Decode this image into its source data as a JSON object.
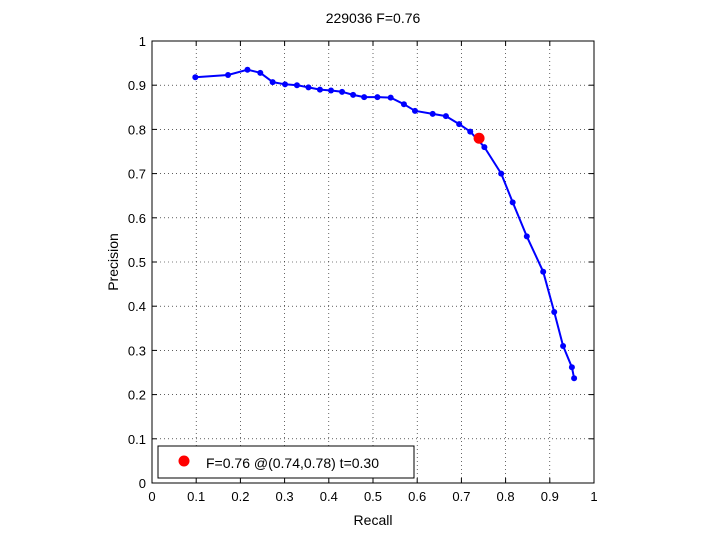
{
  "chart_data": {
    "type": "line",
    "title": "229036 F=0.76",
    "xlabel": "Recall",
    "ylabel": "Precision",
    "xlim": [
      0,
      1
    ],
    "ylim": [
      0,
      1
    ],
    "xticks": [
      0,
      0.1,
      0.2,
      0.3,
      0.4,
      0.5,
      0.6,
      0.7,
      0.8,
      0.9,
      1
    ],
    "yticks": [
      0,
      0.1,
      0.2,
      0.3,
      0.4,
      0.5,
      0.6,
      0.7,
      0.8,
      0.9,
      1
    ],
    "xtick_labels": [
      "0",
      "0.1",
      "0.2",
      "0.3",
      "0.4",
      "0.5",
      "0.6",
      "0.7",
      "0.8",
      "0.9",
      "1"
    ],
    "ytick_labels": [
      "0",
      "0.1",
      "0.2",
      "0.3",
      "0.4",
      "0.5",
      "0.6",
      "0.7",
      "0.8",
      "0.9",
      "1"
    ],
    "grid": true,
    "grid_style": "dotted",
    "series": [
      {
        "color": "#0000ff",
        "marker": "dot",
        "x": [
          0.098,
          0.172,
          0.216,
          0.245,
          0.273,
          0.301,
          0.328,
          0.354,
          0.38,
          0.405,
          0.43,
          0.455,
          0.48,
          0.51,
          0.54,
          0.57,
          0.595,
          0.635,
          0.665,
          0.695,
          0.72,
          0.752,
          0.79,
          0.816,
          0.848,
          0.885,
          0.91,
          0.93,
          0.95,
          0.955
        ],
        "y": [
          0.918,
          0.923,
          0.935,
          0.928,
          0.907,
          0.902,
          0.9,
          0.895,
          0.89,
          0.888,
          0.885,
          0.878,
          0.873,
          0.873,
          0.872,
          0.857,
          0.842,
          0.835,
          0.83,
          0.812,
          0.795,
          0.76,
          0.7,
          0.635,
          0.558,
          0.478,
          0.387,
          0.31,
          0.262,
          0.237
        ]
      }
    ],
    "best_point": {
      "x": 0.74,
      "y": 0.78,
      "color": "#ff0000"
    },
    "legend": {
      "placement": "bottom-left",
      "text": "F=0.76 @(0.74,0.78) t=0.30"
    }
  }
}
